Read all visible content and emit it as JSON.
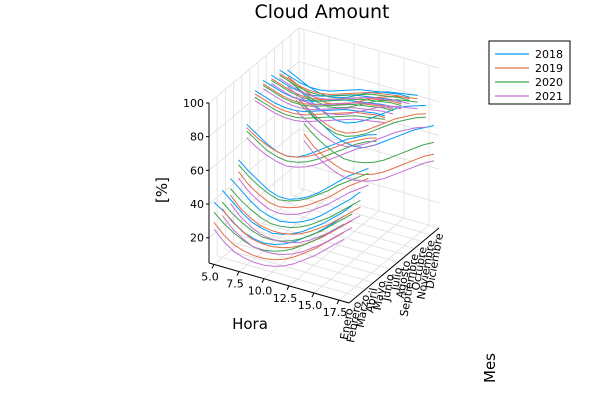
{
  "chart_data": {
    "type": "line",
    "projection": "3d",
    "title": "Cloud Amount",
    "xlabel": "Hora",
    "ylabel": "Mes",
    "zlabel": "[%]",
    "x": [
      5,
      6,
      7,
      8,
      9,
      10,
      11,
      12,
      13,
      14,
      15,
      16,
      17,
      18
    ],
    "x_ticks": [
      "5.0",
      "7.5",
      "10.0",
      "12.5",
      "15.0",
      "17.5"
    ],
    "x_tick_values": [
      5,
      7.5,
      10,
      12.5,
      15,
      17.5
    ],
    "xlim": [
      4.5,
      18.5
    ],
    "categories": [
      "Enero",
      "Febrero",
      "Marzo",
      "Abril",
      "Mayo",
      "Junio",
      "Julio",
      "Agosto",
      "Septiembre",
      "Octubre",
      "Noviembre",
      "Diciembre"
    ],
    "z_ticks": [
      "20",
      "40",
      "60",
      "80",
      "100"
    ],
    "z_tick_values": [
      20,
      40,
      60,
      80,
      100
    ],
    "zlim": [
      5,
      100
    ],
    "legend_position": "top-right",
    "grid": true,
    "series": [
      {
        "name": "2018",
        "color": "#009AFA",
        "values": [
          [
            42,
            38,
            33,
            29,
            27,
            26,
            27,
            29,
            32,
            36,
            40,
            45,
            50,
            56
          ],
          [
            45,
            40,
            35,
            31,
            29,
            28,
            29,
            31,
            34,
            38,
            42,
            47,
            52,
            58
          ],
          [
            48,
            43,
            38,
            34,
            32,
            31,
            32,
            34,
            37,
            41,
            46,
            51,
            56,
            62
          ],
          [
            55,
            50,
            46,
            42,
            40,
            40,
            42,
            45,
            49,
            54,
            59,
            64,
            68,
            72
          ],
          [
            72,
            68,
            64,
            61,
            60,
            61,
            64,
            68,
            72,
            76,
            80,
            83,
            86,
            88
          ],
          [
            88,
            86,
            84,
            83,
            83,
            84,
            86,
            88,
            90,
            92,
            93,
            94,
            95,
            95
          ],
          [
            90,
            88,
            86,
            85,
            85,
            86,
            88,
            90,
            92,
            93,
            94,
            95,
            96,
            96
          ],
          [
            89,
            87,
            85,
            84,
            84,
            85,
            87,
            89,
            91,
            92,
            93,
            94,
            95,
            95
          ],
          [
            88,
            86,
            84,
            83,
            83,
            84,
            86,
            88,
            90,
            91,
            92,
            93,
            94,
            94
          ],
          [
            84,
            81,
            78,
            76,
            75,
            76,
            78,
            81,
            84,
            86,
            88,
            89,
            90,
            91
          ],
          [
            70,
            66,
            62,
            59,
            57,
            57,
            59,
            62,
            66,
            70,
            74,
            77,
            79,
            81
          ],
          [
            55,
            50,
            46,
            42,
            40,
            39,
            40,
            43,
            47,
            51,
            55,
            59,
            62,
            65
          ]
        ]
      },
      {
        "name": "2019",
        "color": "#E26F46",
        "values": [
          [
            30,
            24,
            20,
            18,
            17,
            17,
            18,
            20,
            23,
            27,
            31,
            36,
            41,
            46
          ],
          [
            34,
            28,
            24,
            21,
            20,
            20,
            21,
            23,
            26,
            30,
            34,
            39,
            44,
            49
          ],
          [
            38,
            32,
            28,
            25,
            24,
            24,
            25,
            27,
            30,
            34,
            38,
            43,
            48,
            53
          ],
          [
            48,
            42,
            38,
            35,
            34,
            35,
            37,
            40,
            44,
            48,
            53,
            58,
            62,
            66
          ],
          [
            70,
            66,
            63,
            61,
            60,
            61,
            63,
            66,
            70,
            74,
            78,
            81,
            84,
            86
          ],
          [
            86,
            84,
            82,
            81,
            81,
            82,
            84,
            86,
            88,
            90,
            92,
            93,
            94,
            94
          ],
          [
            88,
            86,
            84,
            83,
            83,
            84,
            86,
            88,
            90,
            92,
            93,
            94,
            95,
            95
          ],
          [
            87,
            85,
            83,
            82,
            82,
            83,
            85,
            87,
            89,
            91,
            92,
            93,
            94,
            94
          ],
          [
            86,
            84,
            82,
            81,
            81,
            82,
            84,
            86,
            88,
            90,
            91,
            92,
            93,
            93
          ],
          [
            80,
            77,
            74,
            72,
            71,
            72,
            74,
            77,
            80,
            83,
            85,
            87,
            88,
            89
          ],
          [
            64,
            60,
            56,
            53,
            51,
            51,
            53,
            56,
            60,
            64,
            68,
            71,
            74,
            76
          ],
          [
            38,
            32,
            28,
            25,
            23,
            23,
            24,
            26,
            29,
            33,
            37,
            41,
            45,
            48
          ]
        ]
      },
      {
        "name": "2020",
        "color": "#3EA44E",
        "values": [
          [
            36,
            31,
            27,
            24,
            22,
            22,
            23,
            25,
            28,
            32,
            36,
            41,
            46,
            51
          ],
          [
            38,
            33,
            29,
            26,
            24,
            24,
            25,
            27,
            30,
            34,
            38,
            43,
            48,
            53
          ],
          [
            42,
            37,
            33,
            30,
            28,
            28,
            29,
            31,
            34,
            38,
            42,
            47,
            52,
            57
          ],
          [
            52,
            47,
            43,
            40,
            38,
            39,
            41,
            44,
            48,
            52,
            57,
            61,
            65,
            69
          ],
          [
            68,
            64,
            60,
            58,
            57,
            58,
            60,
            63,
            67,
            71,
            75,
            79,
            82,
            84
          ],
          [
            84,
            82,
            80,
            79,
            79,
            80,
            82,
            84,
            86,
            88,
            90,
            91,
            92,
            93
          ],
          [
            87,
            85,
            83,
            82,
            82,
            83,
            85,
            87,
            89,
            91,
            92,
            93,
            94,
            94
          ],
          [
            86,
            84,
            82,
            81,
            81,
            82,
            84,
            86,
            88,
            90,
            91,
            92,
            93,
            93
          ],
          [
            85,
            83,
            81,
            80,
            80,
            81,
            83,
            85,
            87,
            89,
            90,
            91,
            92,
            92
          ],
          [
            78,
            75,
            72,
            70,
            69,
            70,
            72,
            75,
            78,
            81,
            83,
            85,
            86,
            87
          ],
          [
            62,
            58,
            54,
            51,
            49,
            49,
            51,
            54,
            58,
            62,
            66,
            69,
            72,
            74
          ],
          [
            44,
            39,
            35,
            32,
            30,
            30,
            31,
            33,
            36,
            40,
            44,
            48,
            52,
            55
          ]
        ]
      },
      {
        "name": "2021",
        "color": "#C271D2",
        "values": [
          [
            26,
            20,
            16,
            14,
            13,
            13,
            14,
            16,
            19,
            23,
            27,
            32,
            37,
            42
          ],
          [
            30,
            24,
            20,
            17,
            16,
            16,
            17,
            19,
            22,
            26,
            30,
            35,
            40,
            45
          ],
          [
            33,
            27,
            23,
            20,
            19,
            19,
            20,
            22,
            25,
            29,
            33,
            38,
            43,
            48
          ],
          [
            44,
            38,
            34,
            31,
            30,
            31,
            33,
            36,
            40,
            44,
            49,
            54,
            58,
            62
          ],
          [
            64,
            60,
            57,
            55,
            54,
            55,
            57,
            60,
            64,
            68,
            72,
            76,
            79,
            82
          ],
          [
            82,
            80,
            78,
            77,
            77,
            78,
            80,
            82,
            84,
            86,
            88,
            89,
            90,
            91
          ],
          [
            85,
            83,
            81,
            80,
            80,
            81,
            83,
            85,
            87,
            89,
            90,
            91,
            92,
            92
          ],
          [
            84,
            82,
            80,
            79,
            79,
            80,
            82,
            84,
            86,
            88,
            89,
            90,
            91,
            91
          ],
          [
            83,
            81,
            79,
            78,
            78,
            79,
            81,
            83,
            85,
            87,
            88,
            89,
            90,
            90
          ],
          [
            74,
            71,
            68,
            66,
            65,
            66,
            68,
            71,
            74,
            77,
            79,
            81,
            82,
            83
          ],
          [
            56,
            52,
            48,
            45,
            43,
            43,
            45,
            48,
            52,
            56,
            60,
            63,
            66,
            68
          ],
          [
            34,
            28,
            24,
            21,
            19,
            19,
            20,
            22,
            25,
            29,
            33,
            37,
            41,
            44
          ]
        ]
      }
    ]
  }
}
